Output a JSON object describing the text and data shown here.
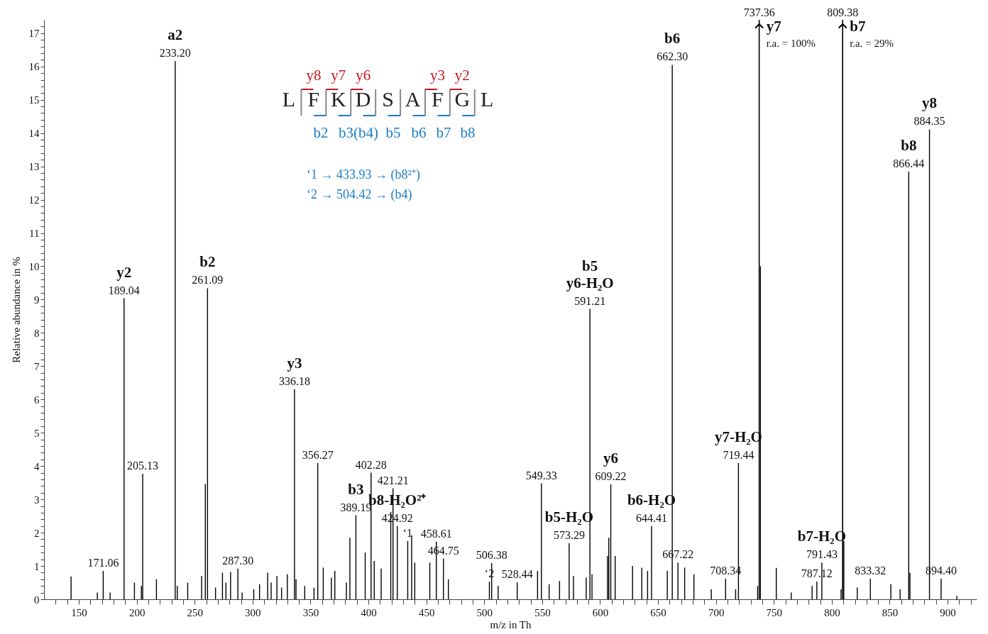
{
  "chart_data": {
    "type": "bar",
    "xlabel": "m/z in Th",
    "ylabel": "Relative abundance in %",
    "x": [
      143.3,
      166,
      171.06,
      177,
      189.04,
      198,
      204,
      205.13,
      217,
      233.2,
      235,
      244,
      256,
      259.2,
      261.09,
      268,
      274,
      277,
      281,
      287.3,
      291,
      301,
      306,
      313,
      316,
      321,
      325,
      330,
      336.18,
      337.5,
      345,
      353,
      356.27,
      361,
      368,
      371,
      381,
      384,
      389.19,
      397.2,
      402.28,
      405,
      411,
      419.3,
      421.21,
      424.92,
      433.93,
      437.3,
      440,
      453,
      458.61,
      464.75,
      469,
      504.42,
      506.38,
      512,
      528.44,
      546,
      549.33,
      556,
      565,
      573.29,
      577,
      588,
      591.21,
      593,
      606.4,
      607.5,
      609.22,
      613,
      628,
      636,
      641,
      644.41,
      658,
      662.3,
      667.22,
      673,
      681,
      696,
      708.34,
      717,
      719.44,
      736,
      738.4,
      752.1,
      765,
      783,
      787.12,
      791.43,
      808,
      810.4,
      822,
      833.32,
      851,
      859,
      866.44,
      867.5,
      884.35,
      894.4,
      908
    ],
    "series": [
      {
        "color": "#000000",
        "values": [
          0.68,
          0.2,
          0.85,
          0.2,
          9.04,
          0.5,
          0.4,
          3.77,
          0.6,
          16.16,
          0.4,
          0.5,
          0.7,
          3.46,
          9.34,
          0.35,
          0.8,
          0.5,
          0.82,
          0.92,
          0.2,
          0.3,
          0.45,
          0.8,
          0.5,
          0.7,
          0.35,
          0.75,
          6.31,
          0.6,
          0.4,
          0.35,
          4.09,
          0.95,
          0.65,
          0.85,
          0.5,
          1.85,
          2.52,
          1.4,
          3.8,
          1.15,
          0.92,
          2.62,
          3.33,
          2.2,
          1.75,
          1.92,
          1.1,
          1.1,
          1.73,
          1.22,
          0.6,
          0.53,
          1.09,
          0.4,
          0.51,
          0.85,
          3.48,
          0.45,
          0.55,
          1.68,
          0.7,
          0.65,
          8.72,
          0.75,
          1.3,
          1.85,
          3.45,
          1.3,
          1.0,
          0.95,
          0.85,
          2.2,
          0.85,
          16.05,
          1.1,
          0.95,
          0.75,
          0.3,
          0.62,
          0.3,
          4.09,
          0.4,
          10.0,
          0.94,
          0.2,
          0.4,
          0.53,
          1.1,
          0.3,
          1.75,
          0.35,
          0.62,
          0.45,
          0.3,
          12.84,
          0.8,
          14.11,
          0.62,
          0.1
        ]
      }
    ],
    "xlim": [
      123,
      922
    ],
    "xticks": [
      {
        "value": 130,
        "label": null
      },
      {
        "value": 140,
        "label": null
      },
      150,
      {
        "value": 160,
        "label": null
      },
      {
        "value": 170,
        "label": null
      },
      {
        "value": 180,
        "label": null
      },
      {
        "value": 190,
        "label": null
      },
      200,
      {
        "value": 210,
        "label": null
      },
      {
        "value": 220,
        "label": null
      },
      {
        "value": 230,
        "label": null
      },
      {
        "value": 240,
        "label": null
      },
      250,
      {
        "value": 260,
        "label": null
      },
      {
        "value": 270,
        "label": null
      },
      {
        "value": 280,
        "label": null
      },
      {
        "value": 290,
        "label": null
      },
      300,
      {
        "value": 310,
        "label": null
      },
      {
        "value": 320,
        "label": null
      },
      {
        "value": 330,
        "label": null
      },
      {
        "value": 340,
        "label": null
      },
      350,
      {
        "value": 360,
        "label": null
      },
      {
        "value": 370,
        "label": null
      },
      {
        "value": 380,
        "label": null
      },
      {
        "value": 390,
        "label": null
      },
      400,
      {
        "value": 410,
        "label": null
      },
      {
        "value": 420,
        "label": null
      },
      {
        "value": 430,
        "label": null
      },
      {
        "value": 440,
        "label": null
      },
      450,
      {
        "value": 460,
        "label": null
      },
      {
        "value": 470,
        "label": null
      },
      {
        "value": 480,
        "label": null
      },
      {
        "value": 490,
        "label": null
      },
      500,
      {
        "value": 510,
        "label": null
      },
      {
        "value": 520,
        "label": null
      },
      {
        "value": 530,
        "label": null
      },
      {
        "value": 540,
        "label": null
      },
      550,
      {
        "value": 560,
        "label": null
      },
      {
        "value": 570,
        "label": null
      },
      {
        "value": 580,
        "label": null
      },
      {
        "value": 590,
        "label": null
      },
      600,
      {
        "value": 610,
        "label": null
      },
      {
        "value": 620,
        "label": null
      },
      {
        "value": 630,
        "label": null
      },
      {
        "value": 640,
        "label": null
      },
      650,
      {
        "value": 660,
        "label": null
      },
      {
        "value": 670,
        "label": null
      },
      {
        "value": 680,
        "label": null
      },
      {
        "value": 690,
        "label": null
      },
      700,
      {
        "value": 710,
        "label": null
      },
      {
        "value": 720,
        "label": null
      },
      {
        "value": 730,
        "label": null
      },
      {
        "value": 740,
        "label": null
      },
      750,
      {
        "value": 760,
        "label": null
      },
      {
        "value": 770,
        "label": null
      },
      {
        "value": 780,
        "label": null
      },
      {
        "value": 790,
        "label": null
      },
      800,
      {
        "value": 810,
        "label": null
      },
      {
        "value": 820,
        "label": null
      },
      {
        "value": 830,
        "label": null
      },
      {
        "value": 840,
        "label": null
      },
      850,
      {
        "value": 860,
        "label": null
      },
      {
        "value": 870,
        "label": null
      },
      {
        "value": 880,
        "label": null
      },
      {
        "value": 890,
        "label": null
      },
      900,
      {
        "value": 910,
        "label": null
      },
      {
        "value": 920,
        "label": null
      }
    ],
    "ylim": [
      0,
      17.4
    ],
    "yticks": [
      0,
      {
        "value": 0.2,
        "label": null
      },
      {
        "value": 0.4,
        "label": null
      },
      {
        "value": 0.6,
        "label": null
      },
      {
        "value": 0.8,
        "label": null
      },
      1,
      {
        "value": 1.2,
        "label": null
      },
      {
        "value": 1.4,
        "label": null
      },
      {
        "value": 1.6,
        "label": null
      },
      {
        "value": 1.8,
        "label": null
      },
      2,
      {
        "value": 2.2,
        "label": null
      },
      {
        "value": 2.4,
        "label": null
      },
      {
        "value": 2.6,
        "label": null
      },
      {
        "value": 2.8,
        "label": null
      },
      3,
      {
        "value": 3.2,
        "label": null
      },
      {
        "value": 3.4,
        "label": null
      },
      {
        "value": 3.6,
        "label": null
      },
      {
        "value": 3.8,
        "label": null
      },
      4,
      {
        "value": 4.2,
        "label": null
      },
      {
        "value": 4.4,
        "label": null
      },
      {
        "value": 4.6,
        "label": null
      },
      {
        "value": 4.8,
        "label": null
      },
      5,
      {
        "value": 5.2,
        "label": null
      },
      {
        "value": 5.4,
        "label": null
      },
      {
        "value": 5.6,
        "label": null
      },
      {
        "value": 5.8,
        "label": null
      },
      6,
      {
        "value": 6.2,
        "label": null
      },
      {
        "value": 6.4,
        "label": null
      },
      {
        "value": 6.6,
        "label": null
      },
      {
        "value": 6.8,
        "label": null
      },
      7,
      {
        "value": 7.2,
        "label": null
      },
      {
        "value": 7.4,
        "label": null
      },
      {
        "value": 7.6,
        "label": null
      },
      {
        "value": 7.8,
        "label": null
      },
      8,
      {
        "value": 8.2,
        "label": null
      },
      {
        "value": 8.4,
        "label": null
      },
      {
        "value": 8.6,
        "label": null
      },
      {
        "value": 8.8,
        "label": null
      },
      9,
      {
        "value": 9.2,
        "label": null
      },
      {
        "value": 9.4,
        "label": null
      },
      {
        "value": 9.6,
        "label": null
      },
      {
        "value": 9.8,
        "label": null
      },
      10,
      {
        "value": 10.2,
        "label": null
      },
      {
        "value": 10.4,
        "label": null
      },
      {
        "value": 10.6,
        "label": null
      },
      {
        "value": 10.8,
        "label": null
      },
      11,
      {
        "value": 11.2,
        "label": null
      },
      {
        "value": 11.4,
        "label": null
      },
      {
        "value": 11.6,
        "label": null
      },
      {
        "value": 11.8,
        "label": null
      },
      12,
      {
        "value": 12.2,
        "label": null
      },
      {
        "value": 12.4,
        "label": null
      },
      {
        "value": 12.6,
        "label": null
      },
      {
        "value": 12.8,
        "label": null
      },
      13,
      {
        "value": 13.2,
        "label": null
      },
      {
        "value": 13.4,
        "label": null
      },
      {
        "value": 13.6,
        "label": null
      },
      {
        "value": 13.8,
        "label": null
      },
      14,
      {
        "value": 14.2,
        "label": null
      },
      {
        "value": 14.4,
        "label": null
      },
      {
        "value": 14.6,
        "label": null
      },
      {
        "value": 14.8,
        "label": null
      },
      15,
      {
        "value": 15.2,
        "label": null
      },
      {
        "value": 15.4,
        "label": null
      },
      {
        "value": 15.6,
        "label": null
      },
      {
        "value": 15.8,
        "label": null
      },
      16,
      {
        "value": 16.2,
        "label": null
      },
      {
        "value": 16.4,
        "label": null
      },
      {
        "value": 16.6,
        "label": null
      },
      {
        "value": 16.8,
        "label": null
      },
      17,
      {
        "value": 17.2,
        "label": null
      }
    ],
    "grid": false,
    "ref_lines": [
      {
        "axis": "x",
        "value": 737.36,
        "label": "737.36",
        "color": "#000000"
      },
      {
        "axis": "x",
        "value": 809.38,
        "label": "809.38",
        "color": "#000000"
      }
    ],
    "annotations": [
      "L F K D S A F G L",
      "y8",
      "y7",
      "y6",
      "y3",
      "y2",
      "b2",
      "b3(b4)",
      "b5",
      "b6",
      "b7",
      "b8",
      "‘1 → 433.93 → (b8²⁺)",
      "‘2 → 504.42 → (b4)",
      "y7",
      "r.a. = 100%",
      "b7",
      "r.a. = 29%",
      {
        "text": "171.06",
        "x": 171.06,
        "y": 0.85
      },
      {
        "text": "189.04",
        "x": 189.04,
        "y": 9.04
      },
      {
        "text": "y2",
        "x": 189.04,
        "y": 9.04
      },
      {
        "text": "205.13",
        "x": 205.13,
        "y": 3.77
      },
      {
        "text": "233.20",
        "x": 233.2,
        "y": 16.16
      },
      {
        "text": "a2",
        "x": 233.2,
        "y": 16.16
      },
      {
        "text": "261.09",
        "x": 261.09,
        "y": 9.34
      },
      {
        "text": "b2",
        "x": 261.09,
        "y": 9.34
      },
      {
        "text": "287.30",
        "x": 287.3,
        "y": 0.92
      },
      {
        "text": "336.18",
        "x": 336.18,
        "y": 6.31
      },
      {
        "text": "y3",
        "x": 336.18,
        "y": 6.31
      },
      {
        "text": "356.27",
        "x": 356.27,
        "y": 4.09
      },
      {
        "text": "389.19",
        "x": 389.19,
        "y": 2.52
      },
      {
        "text": "b3",
        "x": 389.19,
        "y": 2.52
      },
      {
        "text": "402.28",
        "x": 402.28,
        "y": 3.8
      },
      {
        "text": "421.21",
        "x": 421.21,
        "y": 3.33
      },
      {
        "text": "424.92",
        "x": 424.92,
        "y": 2.2
      },
      {
        "text": "b8-H₂O²⁺",
        "x": 424.92,
        "y": 2.2
      },
      {
        "text": "‘1",
        "x": 433.93,
        "y": 1.75
      },
      {
        "text": "458.61",
        "x": 458.61,
        "y": 1.73
      },
      {
        "text": "464.75",
        "x": 464.75,
        "y": 1.22
      },
      {
        "text": "‘2",
        "x": 504.42,
        "y": 0.53
      },
      {
        "text": "506.38",
        "x": 506.38,
        "y": 1.09
      },
      {
        "text": "528.44",
        "x": 528.44,
        "y": 0.51
      },
      {
        "text": "549.33",
        "x": 549.33,
        "y": 3.48
      },
      {
        "text": "573.29",
        "x": 573.29,
        "y": 1.68
      },
      {
        "text": "b5-H₂O",
        "x": 573.29,
        "y": 1.68
      },
      {
        "text": "591.21",
        "x": 591.21,
        "y": 8.72
      },
      {
        "text": "y6-H₂O",
        "x": 591.21,
        "y": 8.72
      },
      {
        "text": "b5",
        "x": 591.21,
        "y": 8.72
      },
      {
        "text": "609.22",
        "x": 609.22,
        "y": 3.45
      },
      {
        "text": "y6",
        "x": 609.22,
        "y": 3.45
      },
      {
        "text": "644.41",
        "x": 644.41,
        "y": 2.2
      },
      {
        "text": "b6-H₂O",
        "x": 644.41,
        "y": 2.2
      },
      {
        "text": "662.30",
        "x": 662.3,
        "y": 16.05
      },
      {
        "text": "b6",
        "x": 662.3,
        "y": 16.05
      },
      {
        "text": "667.22",
        "x": 667.22,
        "y": 1.1
      },
      {
        "text": "708.34",
        "x": 708.34,
        "y": 0.62
      },
      {
        "text": "719.44",
        "x": 719.44,
        "y": 4.09
      },
      {
        "text": "y7-H₂O",
        "x": 719.44,
        "y": 4.09
      },
      {
        "text": "787.12",
        "x": 787.12,
        "y": 0.53
      },
      {
        "text": "791.43",
        "x": 791.43,
        "y": 1.1
      },
      {
        "text": "b7-H₂O",
        "x": 791.43,
        "y": 1.1
      },
      {
        "text": "833.32",
        "x": 833.32,
        "y": 0.62
      },
      {
        "text": "866.44",
        "x": 866.44,
        "y": 12.84
      },
      {
        "text": "b8",
        "x": 866.44,
        "y": 12.84
      },
      {
        "text": "884.35",
        "x": 884.35,
        "y": 14.11
      },
      {
        "text": "y8",
        "x": 884.35,
        "y": 14.11
      },
      {
        "text": "894.40",
        "x": 894.4,
        "y": 0.62
      }
    ]
  }
}
